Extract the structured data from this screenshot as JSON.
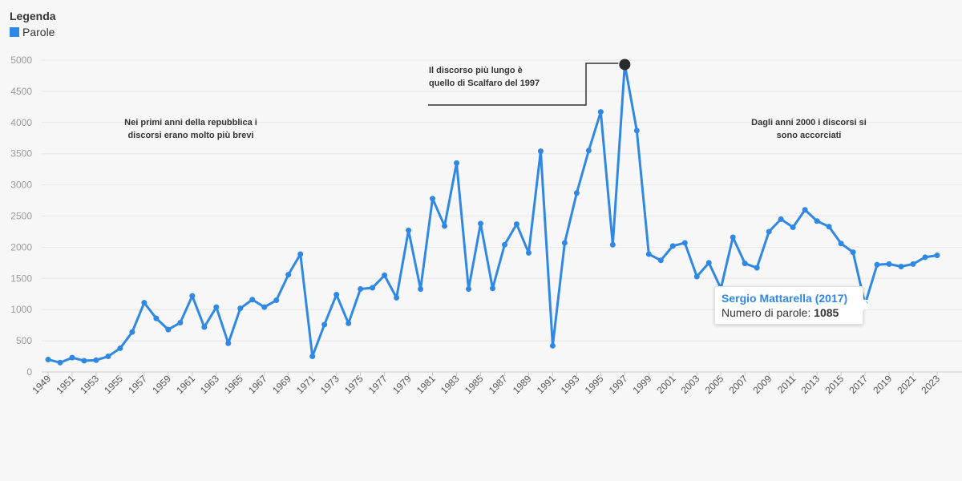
{
  "legend": {
    "title": "Legenda",
    "items": [
      {
        "label": "Parole",
        "color": "#2f88e3"
      }
    ]
  },
  "tooltip": {
    "title": "Sergio Mattarella (2017)",
    "label": "Numero di parole:",
    "value": "1085"
  },
  "annotations": {
    "early": [
      "Nei primi anni della repubblica i",
      "discorsi erano molto più brevi"
    ],
    "longest": [
      "Il discorso più lungo è",
      "quello di Scalfaro del 1997"
    ],
    "recent": [
      "Dagli anni 2000 i discorsi si",
      "sono accorciati"
    ]
  },
  "colors": {
    "series": "#2f88e3",
    "highlight": "#2b2b2b",
    "grid": "#e6e6e6"
  },
  "chart_data": {
    "type": "line",
    "title": "",
    "xlabel": "",
    "ylabel": "",
    "ylim": [
      0,
      5000
    ],
    "yticks": [
      0,
      500,
      1000,
      1500,
      2000,
      2500,
      3000,
      3500,
      4000,
      4500,
      5000
    ],
    "xlim": [
      1949,
      2023
    ],
    "xticks": [
      1949,
      1951,
      1953,
      1955,
      1957,
      1959,
      1961,
      1963,
      1965,
      1967,
      1969,
      1971,
      1973,
      1975,
      1977,
      1979,
      1981,
      1983,
      1985,
      1987,
      1989,
      1991,
      1993,
      1995,
      1997,
      1999,
      2001,
      2003,
      2005,
      2007,
      2009,
      2011,
      2013,
      2015,
      2017,
      2019,
      2021,
      2023
    ],
    "grid": true,
    "legend": "top-left",
    "highlight": {
      "x": 1997,
      "y": 4930
    },
    "series": [
      {
        "name": "Parole",
        "x": [
          1949,
          1950,
          1951,
          1952,
          1953,
          1954,
          1955,
          1956,
          1957,
          1958,
          1959,
          1960,
          1961,
          1962,
          1963,
          1964,
          1965,
          1966,
          1967,
          1968,
          1969,
          1970,
          1971,
          1972,
          1973,
          1974,
          1975,
          1976,
          1977,
          1978,
          1979,
          1980,
          1981,
          1982,
          1983,
          1984,
          1985,
          1986,
          1987,
          1988,
          1989,
          1990,
          1991,
          1992,
          1993,
          1994,
          1995,
          1996,
          1997,
          1998,
          1999,
          2000,
          2001,
          2002,
          2003,
          2004,
          2005,
          2006,
          2007,
          2008,
          2009,
          2010,
          2011,
          2012,
          2013,
          2014,
          2015,
          2016,
          2017,
          2018,
          2019,
          2020,
          2021,
          2022,
          2023
        ],
        "values": [
          200,
          150,
          230,
          180,
          190,
          250,
          380,
          640,
          1110,
          860,
          680,
          790,
          1220,
          720,
          1040,
          460,
          1020,
          1160,
          1040,
          1150,
          1560,
          1890,
          250,
          760,
          1240,
          780,
          1330,
          1350,
          1550,
          1190,
          2270,
          1330,
          2780,
          2340,
          3350,
          1330,
          2380,
          1340,
          2040,
          2370,
          1910,
          3540,
          420,
          2070,
          2870,
          3550,
          4170,
          2040,
          4930,
          3870,
          1890,
          1790,
          2020,
          2070,
          1530,
          1750,
          1340,
          2160,
          1740,
          1670,
          2250,
          2450,
          2320,
          2600,
          2420,
          2330,
          2060,
          1920,
          1085,
          1720,
          1730,
          1690,
          1730,
          1840,
          1870
        ]
      }
    ]
  }
}
